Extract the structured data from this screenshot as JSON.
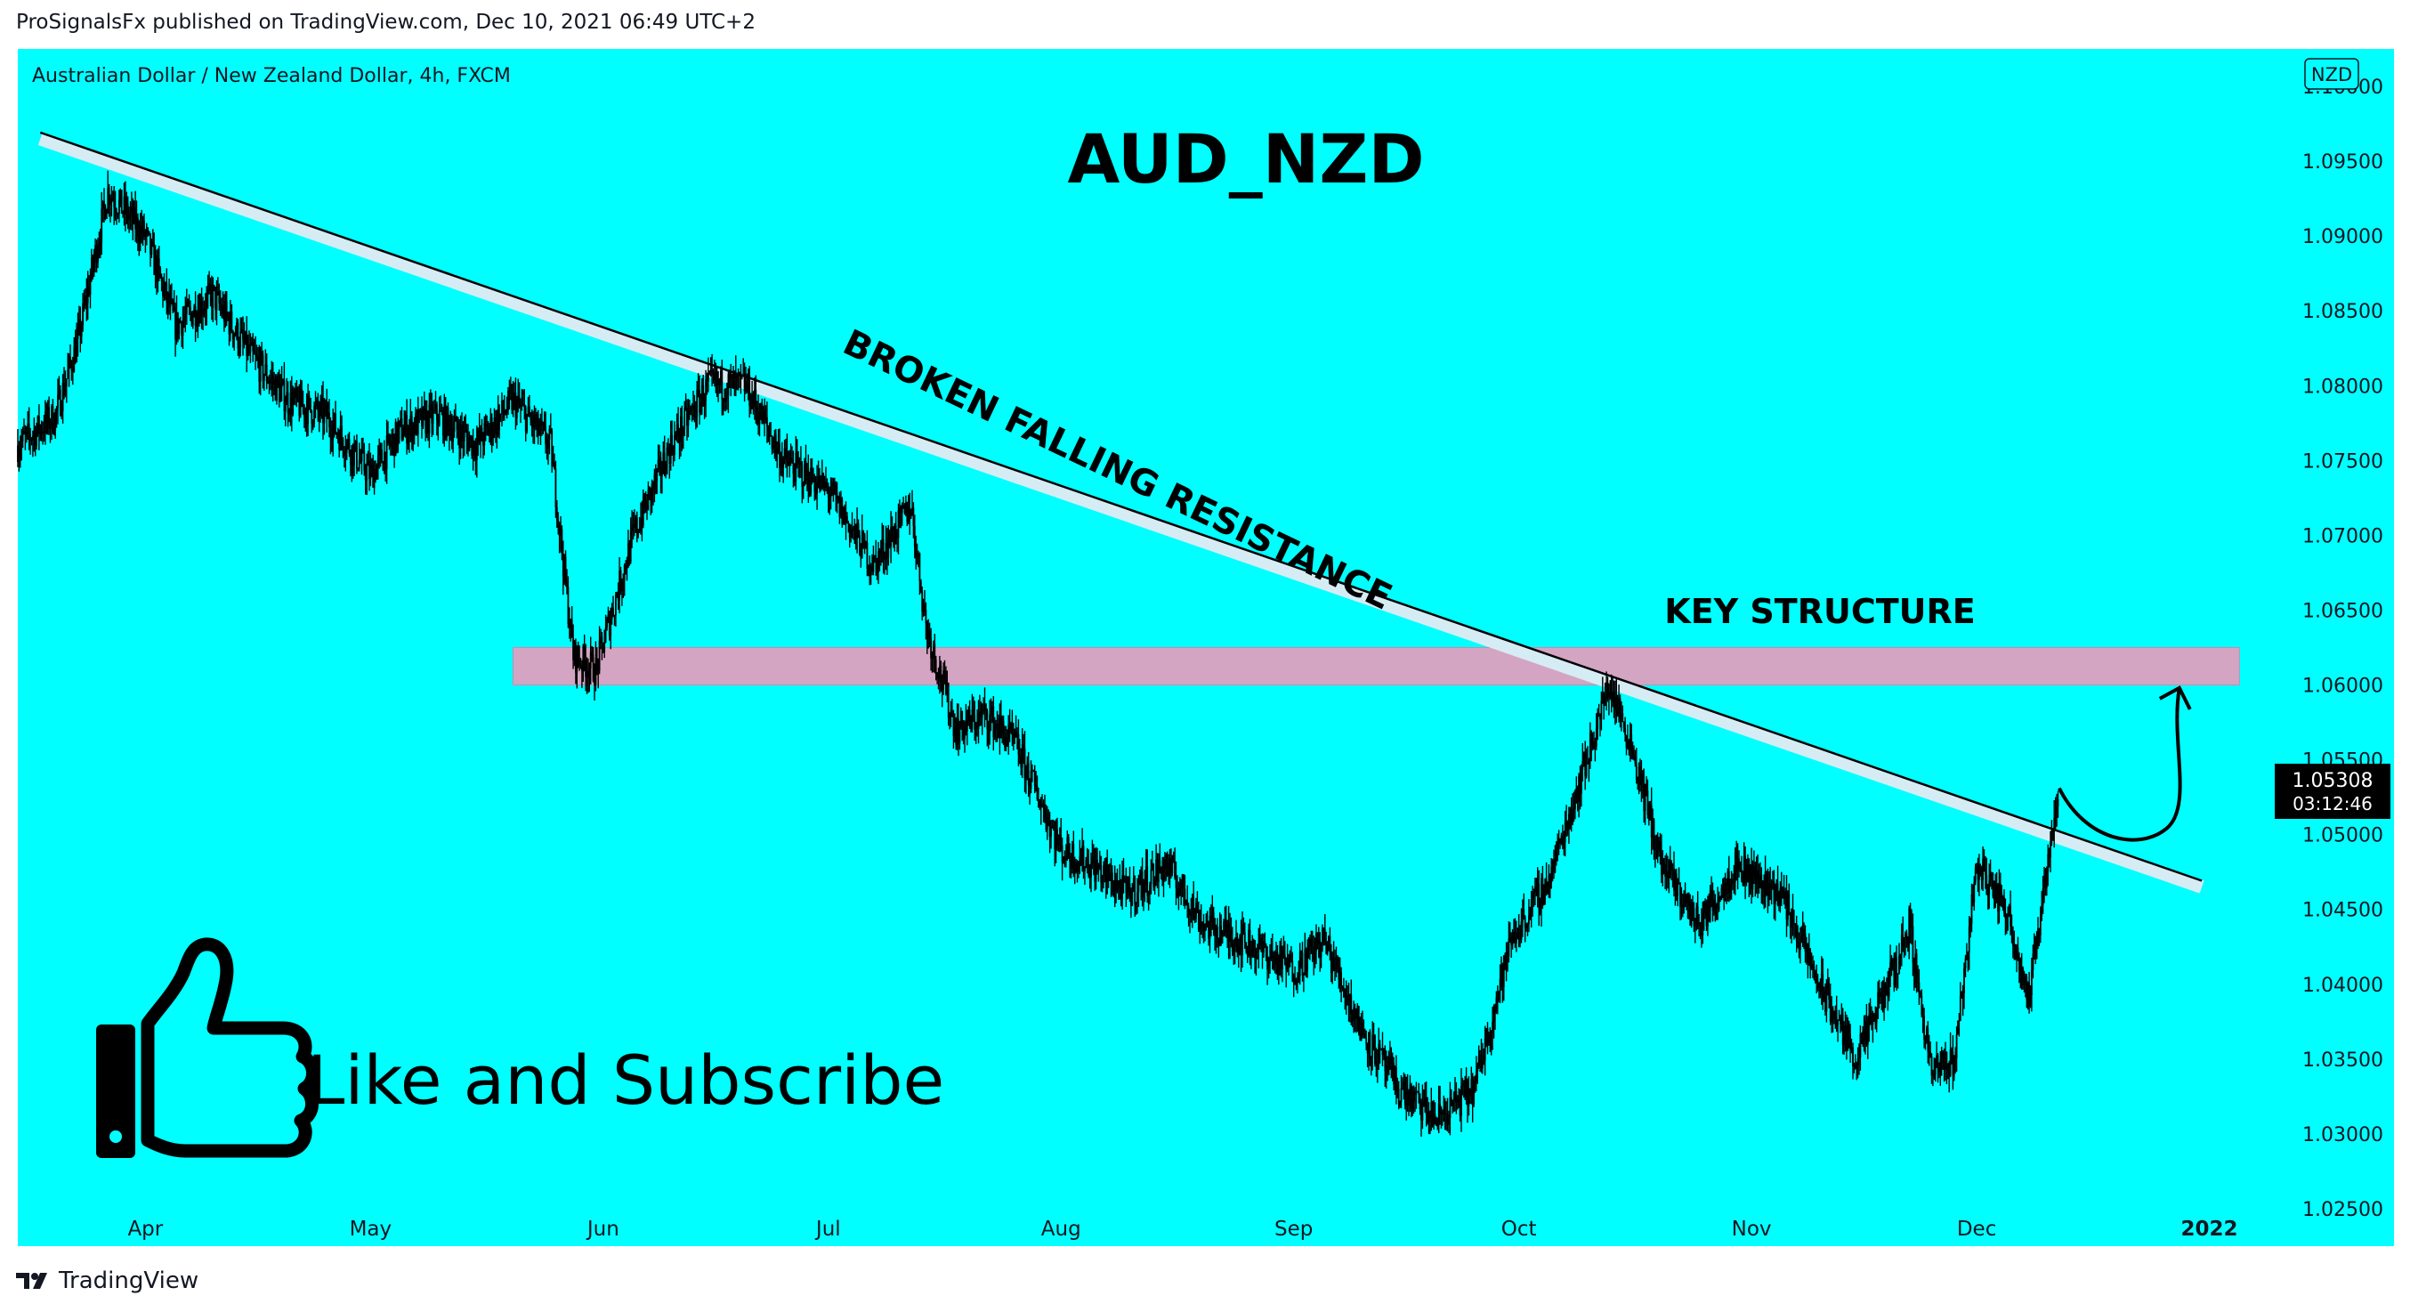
{
  "header": {
    "published_line": "ProSignalsFx published on TradingView.com, Dec 10, 2021 06:49 UTC+2"
  },
  "footer": {
    "brand": "TradingView"
  },
  "colors": {
    "background": "#00FFFF",
    "candles": "#000000",
    "trendline_band": "#D6ECF5",
    "zone": "#D4A5C3",
    "price_label_bg": "#000000"
  },
  "chart_data": {
    "type": "candlestick",
    "symbol_line": "Australian Dollar / New Zealand Dollar, 4h, FXCM",
    "currency_badge": "NZD",
    "title": "AUD_NZD",
    "yticks": [
      "1.10000",
      "1.09500",
      "1.09000",
      "1.08500",
      "1.08000",
      "1.07500",
      "1.07000",
      "1.06500",
      "1.06000",
      "1.05500",
      "1.05000",
      "1.04500",
      "1.04000",
      "1.03500",
      "1.03000",
      "1.02500"
    ],
    "ylim": [
      1.0225,
      1.1025
    ],
    "xticks": [
      "Apr",
      "May",
      "Jun",
      "Jul",
      "Aug",
      "Sep",
      "Oct",
      "Nov",
      "Dec",
      "2022"
    ],
    "last_price": "1.05308",
    "countdown": "03:12:46",
    "path_points": [
      {
        "x": "Mar 15",
        "y": 1.076
      },
      {
        "x": "Mar 20",
        "y": 1.078
      },
      {
        "x": "Mar 23",
        "y": 1.083
      },
      {
        "x": "Mar 27",
        "y": 1.093
      },
      {
        "x": "Apr 01",
        "y": 1.09
      },
      {
        "x": "Apr 05",
        "y": 1.084
      },
      {
        "x": "Apr 10",
        "y": 1.086
      },
      {
        "x": "Apr 15",
        "y": 1.082
      },
      {
        "x": "Apr 20",
        "y": 1.079
      },
      {
        "x": "Apr 25",
        "y": 1.078
      },
      {
        "x": "May 01",
        "y": 1.074
      },
      {
        "x": "May 05",
        "y": 1.077
      },
      {
        "x": "May 10",
        "y": 1.078
      },
      {
        "x": "May 15",
        "y": 1.076
      },
      {
        "x": "May 20",
        "y": 1.079
      },
      {
        "x": "May 25",
        "y": 1.076
      },
      {
        "x": "May 28",
        "y": 1.062
      },
      {
        "x": "May 31",
        "y": 1.061
      },
      {
        "x": "Jun 05",
        "y": 1.07
      },
      {
        "x": "Jun 10",
        "y": 1.076
      },
      {
        "x": "Jun 15",
        "y": 1.08
      },
      {
        "x": "Jun 20",
        "y": 1.08
      },
      {
        "x": "Jun 25",
        "y": 1.075
      },
      {
        "x": "Jul 01",
        "y": 1.073
      },
      {
        "x": "Jul 07",
        "y": 1.068
      },
      {
        "x": "Jul 12",
        "y": 1.072
      },
      {
        "x": "Jul 14",
        "y": 1.064
      },
      {
        "x": "Jul 18",
        "y": 1.057
      },
      {
        "x": "Jul 22",
        "y": 1.058
      },
      {
        "x": "Jul 26",
        "y": 1.056
      },
      {
        "x": "Aug 01",
        "y": 1.049
      },
      {
        "x": "Aug 05",
        "y": 1.048
      },
      {
        "x": "Aug 10",
        "y": 1.046
      },
      {
        "x": "Aug 15",
        "y": 1.048
      },
      {
        "x": "Aug 20",
        "y": 1.044
      },
      {
        "x": "Aug 25",
        "y": 1.043
      },
      {
        "x": "Sep 01",
        "y": 1.041
      },
      {
        "x": "Sep 05",
        "y": 1.043
      },
      {
        "x": "Sep 10",
        "y": 1.037
      },
      {
        "x": "Sep 15",
        "y": 1.033
      },
      {
        "x": "Sep 20",
        "y": 1.031
      },
      {
        "x": "Sep 25",
        "y": 1.033
      },
      {
        "x": "Sep 30",
        "y": 1.043
      },
      {
        "x": "Oct 05",
        "y": 1.047
      },
      {
        "x": "Oct 10",
        "y": 1.055
      },
      {
        "x": "Oct 13",
        "y": 1.06
      },
      {
        "x": "Oct 16",
        "y": 1.056
      },
      {
        "x": "Oct 20",
        "y": 1.048
      },
      {
        "x": "Oct 25",
        "y": 1.044
      },
      {
        "x": "Oct 30",
        "y": 1.048
      },
      {
        "x": "Nov 05",
        "y": 1.046
      },
      {
        "x": "Nov 10",
        "y": 1.04
      },
      {
        "x": "Nov 15",
        "y": 1.035
      },
      {
        "x": "Nov 20",
        "y": 1.041
      },
      {
        "x": "Nov 22",
        "y": 1.044
      },
      {
        "x": "Nov 25",
        "y": 1.034
      },
      {
        "x": "Nov 28",
        "y": 1.035
      },
      {
        "x": "Dec 01",
        "y": 1.048
      },
      {
        "x": "Dec 05",
        "y": 1.045
      },
      {
        "x": "Dec 08",
        "y": 1.039
      },
      {
        "x": "Dec 10",
        "y": 1.047
      },
      {
        "x": "Dec 12",
        "y": 1.0531
      }
    ],
    "trendline": {
      "label": "BROKEN FALLING RESISTANCE",
      "start": {
        "x": "Mar 18",
        "y": 1.0965
      },
      "end": {
        "x": "Dec 31",
        "y": 1.0465
      }
    },
    "zone": {
      "label": "KEY STRUCTURE",
      "x_start": "May 20",
      "x_end": "Jan 05",
      "y_low": 1.06,
      "y_high": 1.0625
    },
    "projection_arrow": {
      "from": {
        "x": "Dec 12",
        "y": 1.0531
      },
      "via": {
        "x": "Dec 18",
        "y": 1.051
      },
      "to": {
        "x": "Dec 28",
        "y": 1.0598
      }
    },
    "cta": {
      "text": "Like and Subscribe",
      "icon": "thumbs-up-icon"
    }
  }
}
